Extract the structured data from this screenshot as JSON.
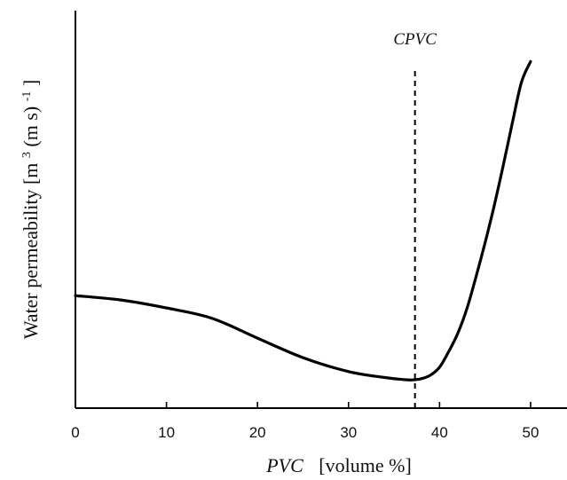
{
  "chart_data": {
    "type": "line",
    "title": "",
    "xlabel": {
      "italic_part": "PVC",
      "rest": "[volume %]"
    },
    "ylabel": {
      "prefix": "Water permeability [m",
      "sup1": "3",
      "middle": " (m s)",
      "sup2": "-1",
      "suffix": "]"
    },
    "xlim": [
      0,
      54
    ],
    "ylim": [
      0,
      1
    ],
    "x_ticks": [
      "0",
      "10",
      "20",
      "30",
      "40",
      "50"
    ],
    "y_ticks_shown": false,
    "grid": false,
    "series": [
      {
        "x": [
          0,
          5,
          10,
          15,
          20,
          25,
          30,
          34,
          36,
          37,
          38,
          39,
          40,
          41,
          42,
          43,
          44,
          45,
          46,
          47,
          48,
          49,
          50
        ],
        "y": [
          0.283,
          0.272,
          0.252,
          0.226,
          0.176,
          0.127,
          0.092,
          0.077,
          0.072,
          0.071,
          0.074,
          0.083,
          0.103,
          0.142,
          0.188,
          0.25,
          0.33,
          0.416,
          0.509,
          0.611,
          0.718,
          0.82,
          0.872
        ],
        "color": "#000000"
      }
    ],
    "annotations": [
      {
        "text": "CPVC",
        "x": 37.3,
        "style": "dashed vertical line"
      }
    ]
  }
}
